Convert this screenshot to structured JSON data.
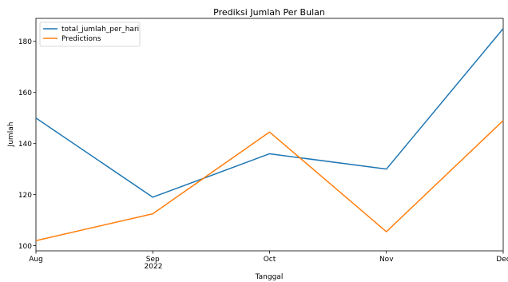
{
  "chart_data": {
    "type": "line",
    "title": "Prediksi Jumlah Per Bulan",
    "xlabel": "Tanggal",
    "ylabel": "Jumlah",
    "categories": [
      "Aug",
      "Sep",
      "Oct",
      "Nov",
      "Dec"
    ],
    "year_label": "2022",
    "ylim": [
      98,
      189
    ],
    "yticks": [
      100,
      120,
      140,
      160,
      180
    ],
    "grid": false,
    "legend_position": "top-left",
    "series": [
      {
        "name": "total_jumlah_per_hari",
        "color": "#1f77b4",
        "values": [
          150,
          119,
          136,
          130,
          185
        ]
      },
      {
        "name": "Predictions",
        "color": "#ff7f0e",
        "values": [
          102,
          112.5,
          144.5,
          105.5,
          149
        ]
      }
    ]
  }
}
